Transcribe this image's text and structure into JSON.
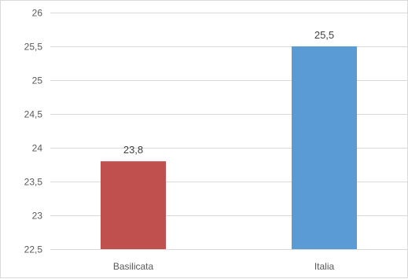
{
  "chart_data": {
    "type": "bar",
    "categories": [
      "Basilicata",
      "Italia"
    ],
    "values": [
      23.8,
      25.5
    ],
    "data_labels": [
      "23,8",
      "25,5"
    ],
    "colors": [
      "#c0504d",
      "#5b9bd5"
    ],
    "ylim": [
      22.5,
      26
    ],
    "yticks": [
      22.5,
      23,
      23.5,
      24,
      24.5,
      25,
      25.5,
      26
    ],
    "ytick_labels": [
      "22,5",
      "23",
      "23,5",
      "24",
      "24,5",
      "25",
      "25,5",
      "26"
    ],
    "grid": true,
    "legend": "none"
  }
}
